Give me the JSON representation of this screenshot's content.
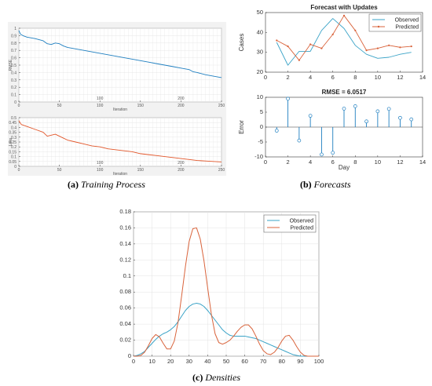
{
  "captions": {
    "a": {
      "tag": "(a)",
      "text": "Training Process"
    },
    "b": {
      "tag": "(b)",
      "text": "Forecasts"
    },
    "c": {
      "tag": "(c)",
      "text": "Densities"
    }
  },
  "colors": {
    "observed": "#3aa3c7",
    "predicted": "#d9633b",
    "rmse_line": "#1f7fc0",
    "loss_line": "#e2562a"
  },
  "chart_data": [
    {
      "id": "training-rmse",
      "type": "line",
      "title": "",
      "xlabel": "Iteration",
      "ylabel": "RMSE",
      "xlim": [
        0,
        250
      ],
      "ylim": [
        0,
        1
      ],
      "xticks": [
        0,
        50,
        100,
        150,
        200,
        250
      ],
      "yticks": [
        0,
        0.1,
        0.2,
        0.3,
        0.4,
        0.5,
        0.6,
        0.7,
        0.8,
        0.9,
        1
      ],
      "mid_labels": [
        "100",
        "200"
      ],
      "series": [
        {
          "x": [
            0,
            2,
            5,
            10,
            20,
            30,
            35,
            40,
            45,
            50,
            55,
            60,
            70,
            80,
            90,
            100,
            110,
            120,
            130,
            140,
            150,
            160,
            170,
            180,
            190,
            200,
            210,
            215,
            220,
            230,
            240,
            250
          ],
          "values": [
            0.97,
            0.92,
            0.9,
            0.88,
            0.86,
            0.83,
            0.79,
            0.78,
            0.8,
            0.79,
            0.76,
            0.74,
            0.72,
            0.7,
            0.68,
            0.66,
            0.64,
            0.62,
            0.6,
            0.58,
            0.56,
            0.54,
            0.52,
            0.5,
            0.48,
            0.46,
            0.44,
            0.41,
            0.4,
            0.37,
            0.35,
            0.33
          ]
        }
      ]
    },
    {
      "id": "training-loss",
      "type": "line",
      "title": "",
      "xlabel": "Iteration",
      "ylabel": "Loss",
      "xlim": [
        0,
        250
      ],
      "ylim": [
        0,
        0.5
      ],
      "xticks": [
        0,
        50,
        100,
        150,
        200,
        250
      ],
      "yticks": [
        0,
        0.05,
        0.1,
        0.15,
        0.2,
        0.25,
        0.3,
        0.35,
        0.4,
        0.45,
        0.5
      ],
      "ytick_labels": [
        "0",
        "0.05",
        "0.1",
        "0.15",
        "0.2",
        "0.25",
        "0.3",
        "0.35",
        "0.4",
        "0.45",
        "0.5"
      ],
      "mid_labels": [
        "100",
        "200"
      ],
      "series": [
        {
          "x": [
            0,
            3,
            10,
            20,
            30,
            35,
            40,
            45,
            50,
            55,
            60,
            70,
            80,
            90,
            100,
            110,
            120,
            130,
            140,
            150,
            160,
            170,
            180,
            190,
            200,
            210,
            220,
            230,
            240,
            250
          ],
          "values": [
            0.47,
            0.43,
            0.41,
            0.38,
            0.35,
            0.31,
            0.32,
            0.33,
            0.31,
            0.29,
            0.27,
            0.25,
            0.23,
            0.21,
            0.2,
            0.18,
            0.17,
            0.16,
            0.15,
            0.13,
            0.12,
            0.11,
            0.1,
            0.09,
            0.08,
            0.07,
            0.06,
            0.055,
            0.05,
            0.045
          ]
        }
      ]
    },
    {
      "id": "forecast",
      "type": "line",
      "title": "Forecast with Updates",
      "xlabel": "",
      "ylabel": "Cases",
      "xlim": [
        0,
        14
      ],
      "ylim": [
        20,
        50
      ],
      "xticks": [
        0,
        2,
        4,
        6,
        8,
        10,
        12,
        14
      ],
      "yticks": [
        20,
        30,
        40,
        50
      ],
      "legend_position": "top-right",
      "x": [
        1,
        2,
        3,
        4,
        5,
        6,
        7,
        8,
        9,
        10,
        11,
        12,
        13
      ],
      "series": [
        {
          "name": "Observed",
          "values": [
            35,
            23.5,
            30.5,
            30.5,
            41,
            47,
            42,
            33.5,
            29,
            27,
            27.5,
            29,
            30
          ]
        },
        {
          "name": "Predicted",
          "values": [
            36,
            33,
            26,
            34,
            32,
            39,
            48.5,
            41,
            31,
            32,
            33.5,
            32.5,
            33
          ]
        }
      ]
    },
    {
      "id": "error",
      "type": "stem",
      "title": "RMSE = 6.0517",
      "xlabel": "Day",
      "ylabel": "Error",
      "xlim": [
        0,
        14
      ],
      "ylim": [
        -10,
        10
      ],
      "xticks": [
        0,
        2,
        4,
        6,
        8,
        10,
        12,
        14
      ],
      "yticks": [
        -10,
        -5,
        0,
        5,
        10
      ],
      "x": [
        1,
        2,
        3,
        4,
        5,
        6,
        7,
        8,
        9,
        10,
        11,
        12,
        13
      ],
      "values": [
        -1.2,
        9.5,
        -4.5,
        3.8,
        -9.2,
        -8.6,
        6.2,
        7.0,
        1.9,
        5.3,
        6.1,
        3.1,
        2.6
      ]
    },
    {
      "id": "densities",
      "type": "line",
      "title": "",
      "xlabel": "",
      "ylabel": "",
      "xlim": [
        0,
        100
      ],
      "ylim": [
        0,
        0.18
      ],
      "xticks": [
        0,
        10,
        20,
        30,
        40,
        50,
        60,
        70,
        80,
        90,
        100
      ],
      "yticks": [
        0,
        0.02,
        0.04,
        0.06,
        0.08,
        0.1,
        0.12,
        0.14,
        0.16,
        0.18
      ],
      "legend_position": "top-right",
      "x": [
        0,
        2,
        4,
        6,
        8,
        10,
        12,
        14,
        16,
        18,
        20,
        22,
        24,
        26,
        28,
        30,
        32,
        34,
        36,
        38,
        40,
        42,
        44,
        46,
        48,
        50,
        52,
        54,
        56,
        58,
        60,
        62,
        64,
        66,
        68,
        70,
        72,
        74,
        76,
        78,
        80,
        82,
        84,
        86,
        88,
        90,
        92,
        94,
        96,
        98,
        100
      ],
      "series": [
        {
          "name": "Observed",
          "values": [
            0.0,
            0.001,
            0.003,
            0.006,
            0.011,
            0.016,
            0.021,
            0.025,
            0.028,
            0.03,
            0.033,
            0.037,
            0.043,
            0.05,
            0.057,
            0.062,
            0.065,
            0.066,
            0.065,
            0.062,
            0.057,
            0.051,
            0.045,
            0.039,
            0.033,
            0.029,
            0.026,
            0.025,
            0.025,
            0.025,
            0.025,
            0.024,
            0.023,
            0.022,
            0.02,
            0.018,
            0.016,
            0.014,
            0.012,
            0.01,
            0.008,
            0.006,
            0.004,
            0.002,
            0.001,
            0.0,
            0.0,
            0.0,
            0.0,
            0.0,
            0.0
          ]
        },
        {
          "name": "Predicted",
          "values": [
            0.0,
            0.0,
            0.001,
            0.005,
            0.013,
            0.022,
            0.027,
            0.024,
            0.016,
            0.009,
            0.009,
            0.019,
            0.042,
            0.076,
            0.112,
            0.143,
            0.159,
            0.16,
            0.146,
            0.119,
            0.085,
            0.052,
            0.028,
            0.017,
            0.015,
            0.017,
            0.02,
            0.025,
            0.031,
            0.036,
            0.039,
            0.039,
            0.034,
            0.025,
            0.015,
            0.007,
            0.003,
            0.002,
            0.005,
            0.011,
            0.019,
            0.025,
            0.026,
            0.02,
            0.012,
            0.005,
            0.001,
            0.0,
            0.0,
            0.0,
            0.0
          ]
        }
      ]
    }
  ]
}
